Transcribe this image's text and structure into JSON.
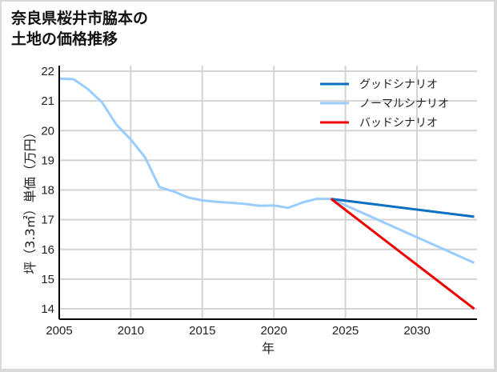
{
  "title_lines": [
    "奈良県桜井市脇本の",
    "土地の価格推移"
  ],
  "chart_data": {
    "type": "line",
    "title": "奈良県桜井市脇本の土地の価格推移",
    "xlabel": "年",
    "ylabel": "坪（3.3㎡）単価（万円）",
    "xlim": [
      2005,
      2034
    ],
    "ylim": [
      13.6,
      22.1
    ],
    "xticks": [
      2005,
      2010,
      2015,
      2020,
      2025,
      2030
    ],
    "yticks": [
      14,
      15,
      16,
      17,
      18,
      19,
      20,
      21,
      22
    ],
    "grid": true,
    "legend_position": "upper right",
    "series": [
      {
        "name": "グッドシナリオ",
        "color": "#0a6fc2",
        "x": [
          2024,
          2034
        ],
        "values": [
          17.7,
          17.1
        ]
      },
      {
        "name": "ノーマルシナリオ",
        "color": "#99ccff",
        "x": [
          2005,
          2006,
          2007,
          2008,
          2009,
          2010,
          2011,
          2012,
          2013,
          2014,
          2015,
          2016,
          2017,
          2018,
          2019,
          2020,
          2021,
          2022,
          2023,
          2024,
          2034
        ],
        "values": [
          21.75,
          21.73,
          21.4,
          20.95,
          20.2,
          19.7,
          19.1,
          18.1,
          17.95,
          17.75,
          17.65,
          17.6,
          17.57,
          17.53,
          17.47,
          17.48,
          17.4,
          17.58,
          17.7,
          17.7,
          15.55
        ]
      },
      {
        "name": "バッドシナリオ",
        "color": "#ee0000",
        "x": [
          2024,
          2034
        ],
        "values": [
          17.7,
          14.0
        ]
      }
    ]
  }
}
